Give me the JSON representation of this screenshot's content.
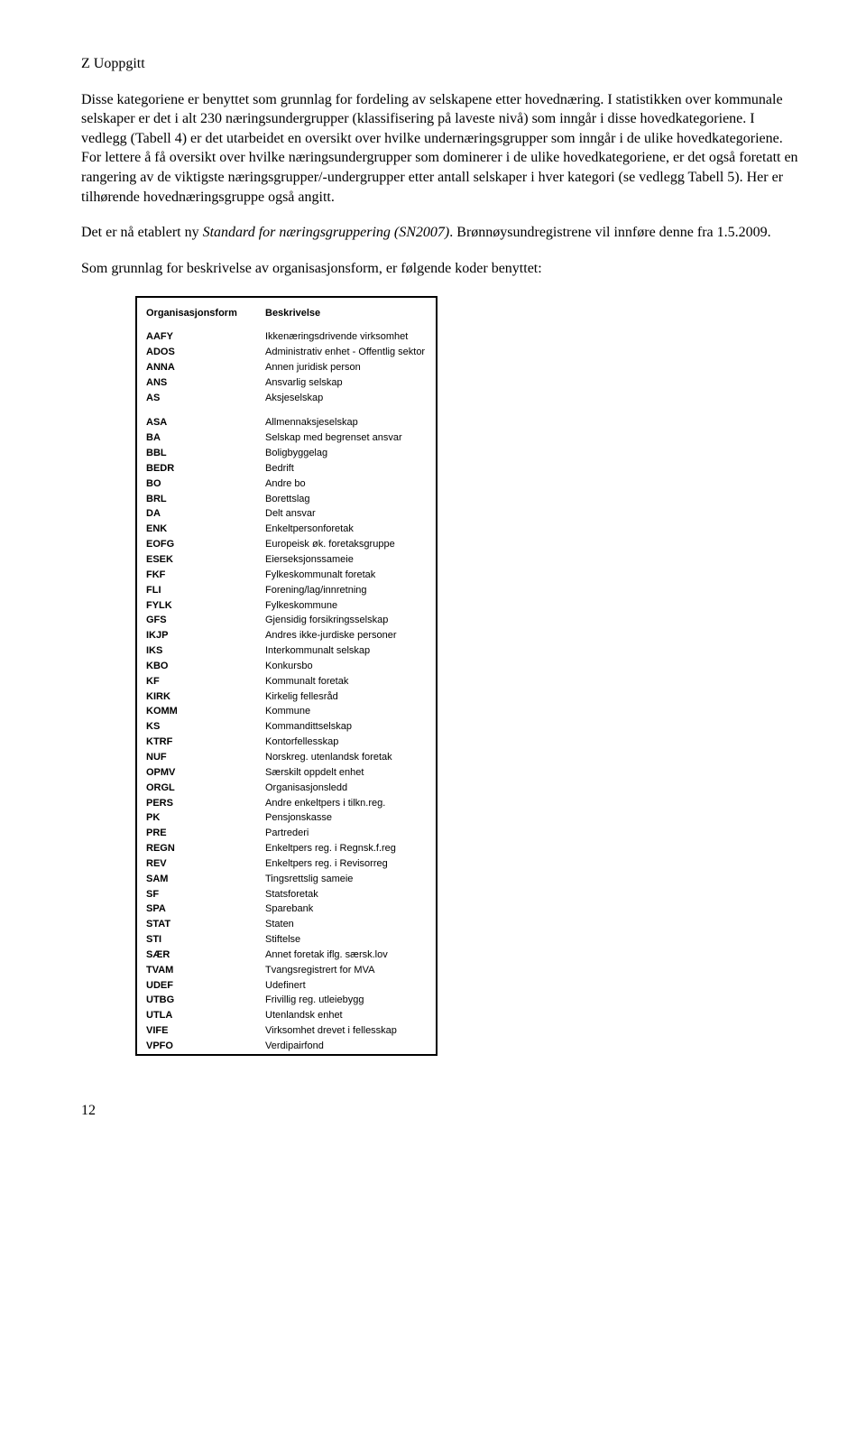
{
  "heading": "Z Uoppgitt",
  "paragraphs": {
    "p1_a": "Disse kategoriene er benyttet som grunnlag for fordeling av selskapene etter hovednæring. I statistikken over kommunale selskaper er det i alt 230 næringsundergrupper (klassifisering på laveste nivå) som inngår i disse hovedkategoriene. I vedlegg (Tabell 4) er det utarbeidet en oversikt over hvilke undernæringsgrupper som inngår i de ulike hovedkategoriene. For lettere å få oversikt over hvilke næringsundergrupper som dominerer i de ulike hovedkategoriene, er det også foretatt en rangering av de viktigste næringsgrupper/-undergrupper etter antall selskaper i hver kategori (se vedlegg Tabell 5). Her er tilhørende hovednæringsgruppe også angitt.",
    "p2_a": "Det er nå etablert ny ",
    "p2_italic": "Standard for næringsgruppering (SN2007)",
    "p2_b": ". Brønnøysundregistrene vil innføre denne fra 1.5.2009.",
    "p3": "Som grunnlag for beskrivelse av organisasjonsform, er følgende koder benyttet:"
  },
  "table": {
    "header_code": "Organisasjonsform",
    "header_desc": "Beskrivelse",
    "rows": [
      {
        "code": "AAFY",
        "desc": "Ikkenæringsdrivende virksomhet"
      },
      {
        "code": "ADOS",
        "desc": "Administrativ enhet - Offentlig sektor"
      },
      {
        "code": "ANNA",
        "desc": "Annen juridisk person"
      },
      {
        "code": "ANS",
        "desc": "Ansvarlig selskap"
      },
      {
        "code": "AS",
        "desc": "Aksjeselskap"
      },
      {
        "code": "ASA",
        "desc": "Allmennaksjeselskap"
      },
      {
        "code": "BA",
        "desc": "Selskap med begrenset ansvar"
      },
      {
        "code": "BBL",
        "desc": "Boligbyggelag"
      },
      {
        "code": "BEDR",
        "desc": "Bedrift"
      },
      {
        "code": "BO",
        "desc": "Andre bo"
      },
      {
        "code": "BRL",
        "desc": "Borettslag"
      },
      {
        "code": "DA",
        "desc": "Delt ansvar"
      },
      {
        "code": "ENK",
        "desc": "Enkeltpersonforetak"
      },
      {
        "code": "EOFG",
        "desc": "Europeisk øk. foretaksgruppe"
      },
      {
        "code": "ESEK",
        "desc": "Eierseksjonssameie"
      },
      {
        "code": "FKF",
        "desc": "Fylkeskommunalt foretak"
      },
      {
        "code": "FLI",
        "desc": "Forening/lag/innretning"
      },
      {
        "code": "FYLK",
        "desc": "Fylkeskommune"
      },
      {
        "code": "GFS",
        "desc": "Gjensidig forsikringsselskap"
      },
      {
        "code": "IKJP",
        "desc": "Andres ikke-jurdiske personer"
      },
      {
        "code": "IKS",
        "desc": "Interkommunalt selskap"
      },
      {
        "code": "KBO",
        "desc": "Konkursbo"
      },
      {
        "code": "KF",
        "desc": "Kommunalt foretak"
      },
      {
        "code": "KIRK",
        "desc": "Kirkelig fellesråd"
      },
      {
        "code": "KOMM",
        "desc": "Kommune"
      },
      {
        "code": "KS",
        "desc": "Kommandittselskap"
      },
      {
        "code": "KTRF",
        "desc": "Kontorfellesskap"
      },
      {
        "code": "NUF",
        "desc": "Norskreg. utenlandsk foretak"
      },
      {
        "code": "OPMV",
        "desc": "Særskilt oppdelt enhet"
      },
      {
        "code": "ORGL",
        "desc": "Organisasjonsledd"
      },
      {
        "code": "PERS",
        "desc": "Andre enkeltpers i tilkn.reg."
      },
      {
        "code": "PK",
        "desc": "Pensjonskasse"
      },
      {
        "code": "PRE",
        "desc": "Partrederi"
      },
      {
        "code": "REGN",
        "desc": "Enkeltpers reg. i Regnsk.f.reg"
      },
      {
        "code": "REV",
        "desc": "Enkeltpers reg. i Revisorreg"
      },
      {
        "code": "SAM",
        "desc": "Tingsrettslig sameie"
      },
      {
        "code": "SF",
        "desc": "Statsforetak"
      },
      {
        "code": "SPA",
        "desc": "Sparebank"
      },
      {
        "code": "STAT",
        "desc": "Staten"
      },
      {
        "code": "STI",
        "desc": "Stiftelse"
      },
      {
        "code": "SÆR",
        "desc": "Annet foretak iflg. særsk.lov"
      },
      {
        "code": "TVAM",
        "desc": "Tvangsregistrert for MVA"
      },
      {
        "code": "UDEF",
        "desc": "Udefinert"
      },
      {
        "code": "UTBG",
        "desc": "Frivillig reg. utleiebygg"
      },
      {
        "code": "UTLA",
        "desc": "Utenlandsk enhet"
      },
      {
        "code": "VIFE",
        "desc": "Virksomhet drevet i fellesskap"
      },
      {
        "code": "VPFO",
        "desc": "Verdipairfond"
      }
    ]
  },
  "page_number": "12"
}
